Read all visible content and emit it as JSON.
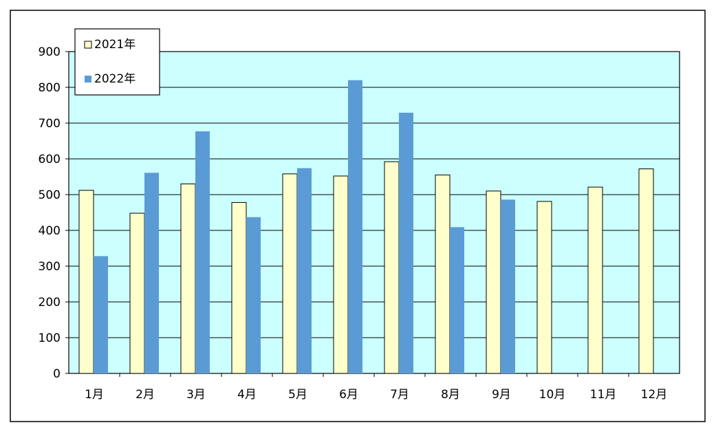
{
  "chart_data": {
    "type": "bar",
    "title": "",
    "xlabel": "",
    "ylabel": "",
    "categories": [
      "1月",
      "2月",
      "3月",
      "4月",
      "5月",
      "6月",
      "7月",
      "8月",
      "9月",
      "10月",
      "11月",
      "12月"
    ],
    "series": [
      {
        "name": "2021年",
        "color": "#ffffcc",
        "values": [
          512,
          448,
          530,
          478,
          558,
          552,
          592,
          555,
          510,
          481,
          521,
          572
        ]
      },
      {
        "name": "2022年",
        "color": "#5b9bd5",
        "values": [
          328,
          561,
          677,
          437,
          574,
          820,
          729,
          409,
          486,
          null,
          null,
          null
        ]
      }
    ],
    "ylim": [
      0,
      900
    ],
    "yticks": [
      "0",
      "100",
      "200",
      "300",
      "400",
      "500",
      "600",
      "700",
      "800",
      "900"
    ],
    "grid": true,
    "legend_position": "top-left",
    "plot_background": "#ccffff"
  }
}
